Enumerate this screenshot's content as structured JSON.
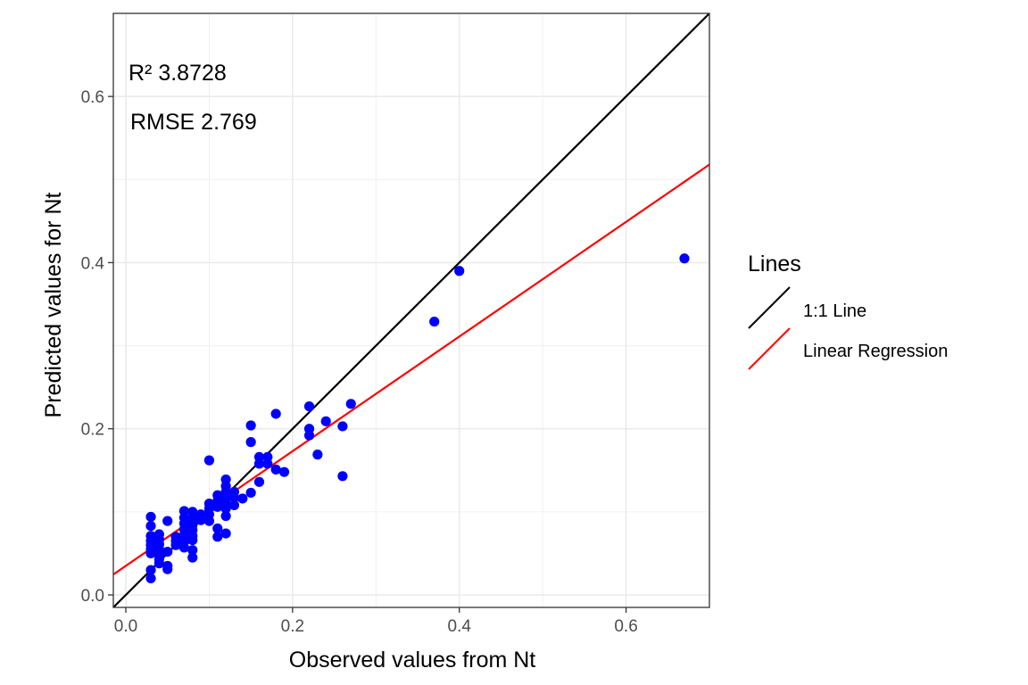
{
  "chart_data": {
    "type": "scatter",
    "xlabel": "Observed values from Nt",
    "ylabel": "Predicted values for Nt",
    "xlim": [
      -0.015,
      0.7
    ],
    "ylim": [
      -0.015,
      0.7
    ],
    "x_ticks": [
      0.0,
      0.2,
      0.4,
      0.6
    ],
    "y_ticks": [
      0.0,
      0.2,
      0.4,
      0.6
    ],
    "x_tick_labels": [
      "0.0",
      "0.2",
      "0.4",
      "0.6"
    ],
    "y_tick_labels": [
      "0.0",
      "0.2",
      "0.4",
      "0.6"
    ],
    "grid": true,
    "annotations": [
      {
        "text": "R²  3.8728"
      },
      {
        "text": "RMSE 2.769"
      }
    ],
    "legend": {
      "title": "Lines",
      "placement": "right",
      "entries": [
        {
          "label": "1:1 Line",
          "color": "#000000"
        },
        {
          "label": "Linear Regression",
          "color": "#ff0000"
        }
      ]
    },
    "lines": [
      {
        "name": "1:1 Line",
        "color": "#000000",
        "intercept": 0.0,
        "slope": 1.0
      },
      {
        "name": "Linear Regression",
        "color": "#ff0000",
        "intercept": 0.035,
        "slope": 0.69
      }
    ],
    "series": [
      {
        "color": "#0000ff",
        "points": [
          [
            0.03,
            0.094
          ],
          [
            0.03,
            0.083
          ],
          [
            0.03,
            0.071
          ],
          [
            0.03,
            0.065
          ],
          [
            0.03,
            0.06
          ],
          [
            0.03,
            0.055
          ],
          [
            0.03,
            0.05
          ],
          [
            0.03,
            0.03
          ],
          [
            0.03,
            0.02
          ],
          [
            0.04,
            0.073
          ],
          [
            0.04,
            0.067
          ],
          [
            0.04,
            0.061
          ],
          [
            0.04,
            0.055
          ],
          [
            0.04,
            0.048
          ],
          [
            0.04,
            0.043
          ],
          [
            0.04,
            0.038
          ],
          [
            0.05,
            0.089
          ],
          [
            0.05,
            0.052
          ],
          [
            0.05,
            0.035
          ],
          [
            0.05,
            0.031
          ],
          [
            0.06,
            0.07
          ],
          [
            0.06,
            0.065
          ],
          [
            0.06,
            0.06
          ],
          [
            0.07,
            0.101
          ],
          [
            0.07,
            0.093
          ],
          [
            0.07,
            0.086
          ],
          [
            0.07,
            0.079
          ],
          [
            0.07,
            0.072
          ],
          [
            0.07,
            0.064
          ],
          [
            0.07,
            0.057
          ],
          [
            0.08,
            0.1
          ],
          [
            0.08,
            0.092
          ],
          [
            0.08,
            0.084
          ],
          [
            0.08,
            0.078
          ],
          [
            0.08,
            0.071
          ],
          [
            0.08,
            0.066
          ],
          [
            0.08,
            0.054
          ],
          [
            0.08,
            0.045
          ],
          [
            0.09,
            0.097
          ],
          [
            0.09,
            0.09
          ],
          [
            0.1,
            0.162
          ],
          [
            0.1,
            0.11
          ],
          [
            0.1,
            0.104
          ],
          [
            0.1,
            0.097
          ],
          [
            0.1,
            0.089
          ],
          [
            0.11,
            0.12
          ],
          [
            0.11,
            0.113
          ],
          [
            0.11,
            0.106
          ],
          [
            0.11,
            0.08
          ],
          [
            0.11,
            0.07
          ],
          [
            0.12,
            0.139
          ],
          [
            0.12,
            0.131
          ],
          [
            0.12,
            0.124
          ],
          [
            0.12,
            0.117
          ],
          [
            0.12,
            0.11
          ],
          [
            0.12,
            0.104
          ],
          [
            0.12,
            0.095
          ],
          [
            0.12,
            0.074
          ],
          [
            0.13,
            0.124
          ],
          [
            0.13,
            0.117
          ],
          [
            0.13,
            0.108
          ],
          [
            0.14,
            0.116
          ],
          [
            0.15,
            0.204
          ],
          [
            0.15,
            0.184
          ],
          [
            0.15,
            0.123
          ],
          [
            0.16,
            0.166
          ],
          [
            0.16,
            0.158
          ],
          [
            0.16,
            0.136
          ],
          [
            0.17,
            0.166
          ],
          [
            0.17,
            0.158
          ],
          [
            0.18,
            0.218
          ],
          [
            0.18,
            0.151
          ],
          [
            0.19,
            0.148
          ],
          [
            0.22,
            0.227
          ],
          [
            0.22,
            0.2
          ],
          [
            0.22,
            0.192
          ],
          [
            0.23,
            0.169
          ],
          [
            0.24,
            0.209
          ],
          [
            0.26,
            0.203
          ],
          [
            0.26,
            0.143
          ],
          [
            0.27,
            0.23
          ],
          [
            0.37,
            0.329
          ],
          [
            0.4,
            0.39
          ],
          [
            0.67,
            0.405
          ]
        ]
      }
    ]
  }
}
